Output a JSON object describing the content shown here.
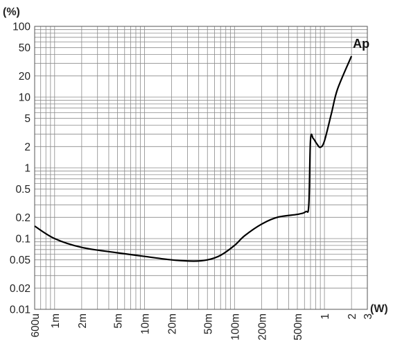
{
  "chart_data": {
    "type": "line",
    "title": "",
    "x_unit_label": "(W)",
    "y_unit_label": "(%)",
    "x_scale": "log",
    "y_scale": "log",
    "xlim": [
      0.0006,
      3
    ],
    "ylim": [
      0.01,
      100
    ],
    "grid": true,
    "x_tick_values": [
      0.0006,
      0.001,
      0.002,
      0.005,
      0.01,
      0.02,
      0.05,
      0.1,
      0.2,
      0.5,
      1,
      2,
      3
    ],
    "x_tick_labels": [
      "600u",
      "1m",
      "2m",
      "5m",
      "10m",
      "20m",
      "50m",
      "100m",
      "200m",
      "500m",
      "1",
      "2",
      "3"
    ],
    "y_tick_values": [
      100,
      50,
      20,
      10,
      5,
      2,
      1,
      0.5,
      0.2,
      0.1,
      0.05,
      0.02,
      0.01
    ],
    "y_tick_labels": [
      "100",
      "50",
      "20",
      "10",
      "5",
      "2",
      "1",
      "0.5",
      "0.2",
      "0.1",
      "0.05",
      "0.02",
      "0.01"
    ],
    "series": [
      {
        "name": "Ap",
        "color": "#000000",
        "points": [
          [
            0.0006,
            0.15
          ],
          [
            0.001,
            0.1
          ],
          [
            0.002,
            0.075
          ],
          [
            0.005,
            0.063
          ],
          [
            0.01,
            0.056
          ],
          [
            0.02,
            0.05
          ],
          [
            0.035,
            0.048
          ],
          [
            0.05,
            0.05
          ],
          [
            0.07,
            0.058
          ],
          [
            0.1,
            0.08
          ],
          [
            0.13,
            0.11
          ],
          [
            0.2,
            0.16
          ],
          [
            0.3,
            0.2
          ],
          [
            0.5,
            0.22
          ],
          [
            0.62,
            0.24
          ],
          [
            0.67,
            0.3
          ],
          [
            0.7,
            2.5
          ],
          [
            0.75,
            2.6
          ],
          [
            0.82,
            2.2
          ],
          [
            0.9,
            1.95
          ],
          [
            1.0,
            2.4
          ],
          [
            1.2,
            6
          ],
          [
            1.4,
            13
          ],
          [
            2.0,
            38
          ]
        ]
      }
    ]
  }
}
